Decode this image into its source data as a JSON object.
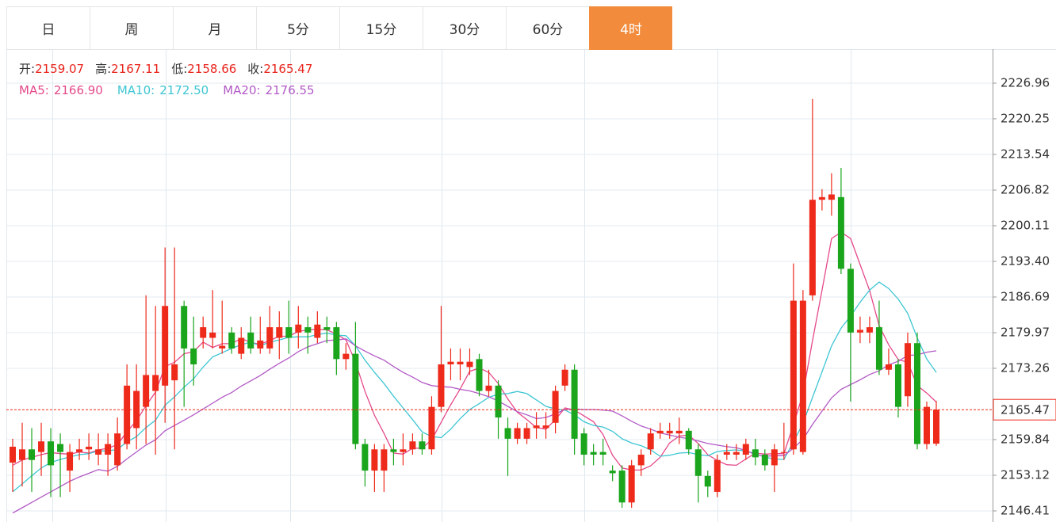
{
  "tabs": [
    "日",
    "周",
    "月",
    "5分",
    "15分",
    "30分",
    "60分",
    "4时"
  ],
  "selected_tab": "4时",
  "info": [
    {
      "label": "开:",
      "value": "2159.07"
    },
    {
      "label": "高:",
      "value": "2167.11"
    },
    {
      "label": "低:",
      "value": "2158.66"
    },
    {
      "label": "收:",
      "value": "2165.47"
    }
  ],
  "chart_data": {
    "type": "candlestick",
    "up_color": "#ee2a1b",
    "down_color": "#1aa51c",
    "ylim": [
      2144.32,
      2233.37
    ],
    "yticks": [
      {
        "value": 2146.41,
        "label": "2146.41"
      },
      {
        "value": 2153.12,
        "label": "2153.12"
      },
      {
        "value": 2159.84,
        "label": "2159.84"
      },
      {
        "value": 2173.26,
        "label": "2173.26"
      },
      {
        "value": 2179.97,
        "label": "2179.97"
      },
      {
        "value": 2186.69,
        "label": "2186.69"
      },
      {
        "value": 2193.4,
        "label": "2193.40"
      },
      {
        "value": 2200.11,
        "label": "2200.11"
      },
      {
        "value": 2206.82,
        "label": "2206.82"
      },
      {
        "value": 2213.54,
        "label": "2213.54"
      },
      {
        "value": 2220.25,
        "label": "2220.25"
      },
      {
        "value": 2226.96,
        "label": "2226.96"
      }
    ],
    "grid": true,
    "last_price": 2165.47,
    "last_price_color": "#ee2a1b",
    "open": [
      2155.5,
      2156,
      2158,
      2157.5,
      2159.5,
      2159,
      2154,
      2157.5,
      2158,
      2157,
      2157,
      2155,
      2159,
      2162,
      2166,
      2169,
      2170,
      2171,
      2185,
      2177,
      2179,
      2179,
      2177,
      2180,
      2176,
      2180,
      2177,
      2177,
      2179,
      2181,
      2180,
      2181,
      2179,
      2181,
      2181,
      2175,
      2176,
      2159,
      2154,
      2154,
      2158,
      2157.5,
      2158,
      2159.5,
      2158,
      2166,
      2174,
      2174,
      2173.5,
      2175,
      2169,
      2170,
      2162,
      2160,
      2160,
      2162,
      2162,
      2163,
      2170,
      2173,
      2161,
      2157.5,
      2157.5,
      2154,
      2154,
      2148,
      2155,
      2158,
      2161,
      2161,
      2161,
      2161.5,
      2158,
      2153,
      2150,
      2157,
      2157,
      2157,
      2158,
      2157,
      2155,
      2157.5,
      2158,
      2157.5,
      2187,
      2205,
      2205,
      2205.5,
      2192,
      2180,
      2180,
      2181,
      2173,
      2174,
      2168,
      2178,
      2159,
      2159.07
    ],
    "high": [
      2160,
      2163,
      2162,
      2163,
      2162,
      2161,
      2159,
      2160,
      2161,
      2161,
      2161,
      2164,
      2174,
      2174,
      2187,
      2185,
      2196,
      2196,
      2186,
      2183,
      2183,
      2188,
      2186,
      2181,
      2181,
      2183,
      2183,
      2185,
      2184,
      2186,
      2185,
      2183,
      2184,
      2183,
      2182,
      2178,
      2182,
      2160,
      2159,
      2159,
      2160,
      2161,
      2161,
      2161,
      2168,
      2185,
      2177,
      2177,
      2177,
      2176,
      2173,
      2171,
      2164,
      2163,
      2163,
      2165,
      2165,
      2170,
      2174,
      2174,
      2162,
      2159,
      2160,
      2155,
      2155,
      2156,
      2158,
      2162,
      2163,
      2163,
      2164,
      2162,
      2159,
      2154,
      2157,
      2159,
      2159,
      2160,
      2160,
      2158,
      2159,
      2163,
      2193,
      2188,
      2224,
      2207,
      2210,
      2211,
      2193,
      2183,
      2183,
      2186,
      2177,
      2175,
      2180,
      2180,
      2167,
      2167.11
    ],
    "low": [
      2150,
      2151,
      2150,
      2153,
      2149,
      2149,
      2150,
      2156,
      2156,
      2155,
      2153,
      2154,
      2158,
      2158,
      2159,
      2157,
      2163,
      2158,
      2166,
      2170,
      2177,
      2177,
      2176,
      2176,
      2175,
      2176,
      2176,
      2176,
      2175,
      2176,
      2177,
      2176,
      2178,
      2178,
      2172,
      2173,
      2158,
      2151,
      2150,
      2150,
      2155,
      2155,
      2157,
      2157,
      2157,
      2165,
      2171,
      2171,
      2172,
      2168,
      2168,
      2160,
      2153,
      2159,
      2159,
      2160,
      2160,
      2161,
      2169,
      2157,
      2155,
      2155,
      2155,
      2152,
      2147,
      2147,
      2153,
      2157,
      2160,
      2160,
      2159,
      2157,
      2148,
      2149,
      2149,
      2156,
      2156,
      2156,
      2155,
      2154,
      2150,
      2156,
      2157,
      2157,
      2186,
      2203,
      2202,
      2191,
      2167,
      2178,
      2178,
      2172,
      2172,
      2164,
      2166,
      2158,
      2158,
      2158.66
    ],
    "close": [
      2158.5,
      2158,
      2156,
      2159.5,
      2155,
      2157.5,
      2157.5,
      2158,
      2158.5,
      2158,
      2159,
      2161,
      2170,
      2169,
      2172,
      2172,
      2185,
      2174,
      2177,
      2174,
      2181,
      2180,
      2177.5,
      2177,
      2179,
      2177,
      2178.5,
      2181,
      2181,
      2179,
      2181.5,
      2180,
      2181.5,
      2180.5,
      2175,
      2176,
      2159,
      2154,
      2158,
      2158,
      2157.5,
      2158,
      2159.5,
      2158,
      2166,
      2174,
      2174.5,
      2174.5,
      2174.5,
      2169,
      2170,
      2164,
      2160,
      2162,
      2162,
      2162.5,
      2162.5,
      2169,
      2173,
      2160,
      2157,
      2157,
      2157,
      2153.5,
      2148,
      2155,
      2157,
      2161,
      2161.5,
      2161.5,
      2161.5,
      2158,
      2153,
      2151,
      2156,
      2157.5,
      2157.5,
      2159,
      2156.5,
      2155,
      2158,
      2157.5,
      2186,
      2186,
      2205,
      2205.5,
      2206,
      2192,
      2180,
      2180.5,
      2181,
      2173,
      2174,
      2166,
      2178,
      2159,
      2166,
      2165.47
    ],
    "series": [
      {
        "name": "MA5:",
        "value_label": "2166.90",
        "color": "#e5498a",
        "values": [
          2155,
          2156,
          2156.5,
          2157,
          2157.4,
          2157.2,
          2157.1,
          2157.5,
          2157.3,
          2157.9,
          2158.2,
          2158.9,
          2161.3,
          2163.4,
          2166.2,
          2168.8,
          2173.6,
          2174.4,
          2176,
          2176.4,
          2178.2,
          2177.2,
          2177.9,
          2177.9,
          2178.9,
          2178.1,
          2177.8,
          2178.5,
          2179.3,
          2179.3,
          2180.2,
          2180.5,
          2180.6,
          2180.5,
          2179.7,
          2178.6,
          2174.4,
          2168.9,
          2164.4,
          2161,
          2157.3,
          2157.1,
          2158.2,
          2158.2,
          2159.8,
          2163.1,
          2166.4,
          2169.4,
          2172.7,
          2173.3,
          2172.5,
          2170.4,
          2167.5,
          2165,
          2163.6,
          2162.1,
          2161.8,
          2163.6,
          2165.8,
          2165.4,
          2164.3,
          2163.2,
          2160.8,
          2156.9,
          2154.5,
          2154.1,
          2154.1,
          2154.9,
          2156.5,
          2159.2,
          2160.5,
          2160.7,
          2159.1,
          2157,
          2155.9,
          2155.1,
          2155,
          2156.2,
          2157.3,
          2157.1,
          2157.2,
          2157.2,
          2162.6,
          2168.5,
          2178.5,
          2188,
          2197.7,
          2198.9,
          2197.7,
          2192.8,
          2187.9,
          2181.3,
          2177.7,
          2174.9,
          2174.4,
          2170,
          2168.6,
          2166.9
        ]
      },
      {
        "name": "MA10:",
        "value_label": "2172.50",
        "color": "#3ec6d3",
        "values": [
          2150,
          2151.5,
          2153,
          2154.5,
          2155.5,
          2156.1,
          2156.6,
          2157,
          2157.2,
          2157.7,
          2157.7,
          2158,
          2159.4,
          2160.4,
          2162.1,
          2163.5,
          2166.3,
          2167.9,
          2169.7,
          2171.3,
          2173.5,
          2175.4,
          2176.2,
          2177,
          2177.7,
          2178.2,
          2177.5,
          2178.2,
          2178.6,
          2179.1,
          2179.2,
          2179.2,
          2179.6,
          2179.9,
          2179.5,
          2179.4,
          2177.5,
          2174.8,
          2172.5,
          2170.4,
          2168,
          2165.8,
          2163.6,
          2161.3,
          2160.4,
          2160.2,
          2161.8,
          2163.8,
          2165.5,
          2166.6,
          2167.8,
          2168.4,
          2168.5,
          2168.9,
          2168.5,
          2167.3,
          2166.1,
          2165.6,
          2165.4,
          2164.5,
          2163.2,
          2162.5,
          2162.2,
          2161.4,
          2160,
          2159.2,
          2158.7,
          2157.9,
          2156.7,
          2156.9,
          2157.3,
          2157.4,
          2157,
          2156.8,
          2157.6,
          2157.8,
          2157.9,
          2157.7,
          2157.2,
          2156.5,
          2156.2,
          2156.1,
          2159.4,
          2162.9,
          2167.8,
          2172.6,
          2177.5,
          2180.8,
          2183.1,
          2185.7,
          2188,
          2189.5,
          2188.3,
          2186.3,
          2183.6,
          2179,
          2175,
          2172.5
        ]
      },
      {
        "name": "MA20:",
        "value_label": "2176.55",
        "color": "#b35ac6",
        "values": [
          2146,
          2147,
          2148,
          2149,
          2150,
          2151,
          2152,
          2152.8,
          2153.5,
          2154.2,
          2153.9,
          2154.8,
          2156.2,
          2157.5,
          2158.8,
          2159.8,
          2161.5,
          2162.5,
          2163.5,
          2164.5,
          2165.6,
          2166.7,
          2167.8,
          2168.7,
          2169.9,
          2170.9,
          2171.9,
          2173.1,
          2174.2,
          2175.2,
          2176.4,
          2177.3,
          2177.9,
          2178.5,
          2178.6,
          2178.8,
          2177.5,
          2176.5,
          2175.6,
          2174.8,
          2173.6,
          2172.5,
          2171.6,
          2170.6,
          2170,
          2169.8,
          2169.7,
          2169.3,
          2169,
          2168.5,
          2167.9,
          2167.1,
          2166.1,
          2165.1,
          2164.5,
          2163.8,
          2164,
          2164.7,
          2165.5,
          2165.6,
          2165.5,
          2165.5,
          2165.4,
          2165.2,
          2164.3,
          2163.3,
          2162.4,
          2161.8,
          2161.1,
          2160.7,
          2160.3,
          2160,
          2159.6,
          2159.1,
          2158.8,
          2158.5,
          2158.3,
          2157.8,
          2157,
          2156.7,
          2156.8,
          2156.8,
          2158.2,
          2159.9,
          2162.7,
          2165.2,
          2167.7,
          2169.3,
          2170.2,
          2171.1,
          2172.1,
          2172.8,
          2173.9,
          2174.6,
          2175.7,
          2175.8,
          2176.3,
          2176.55
        ]
      }
    ]
  }
}
